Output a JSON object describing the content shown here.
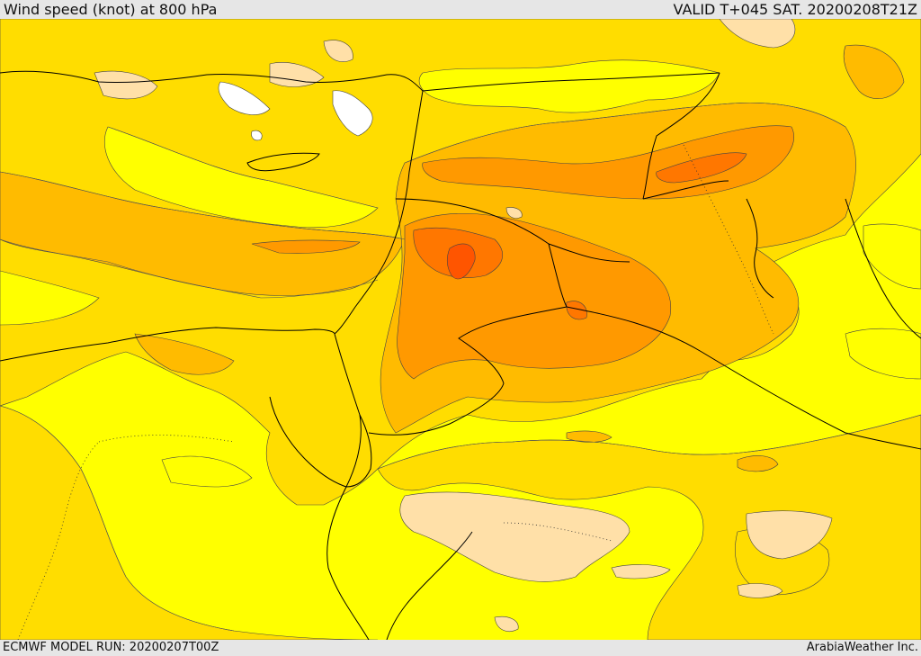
{
  "header": {
    "title": "Wind speed (knot) at 800 hPa",
    "valid": "VALID T+045 SAT. 20200208T21Z"
  },
  "footer": {
    "model_run": "ECMWF MODEL RUN: 20200207T00Z",
    "credit": "ArabiaWeather Inc."
  },
  "map": {
    "field": "wind speed",
    "level_hpa": 800,
    "unit": "knot",
    "palette": {
      "level_0": "#ffff00",
      "level_1": "#ffdd00",
      "level_2": "#ffbb00",
      "level_3": "#ff9900",
      "level_4": "#ff7700",
      "level_5": "#ff5500",
      "calm": "#ffe0a8",
      "very_calm": "#ffffff",
      "coastline": "#000000"
    }
  }
}
